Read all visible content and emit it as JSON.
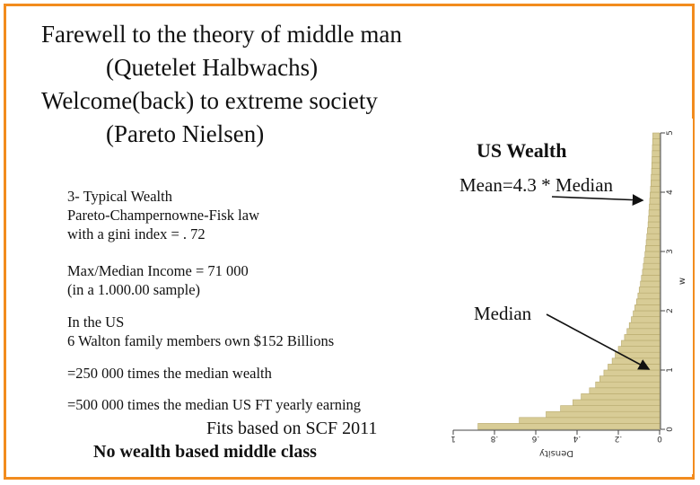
{
  "slide": {
    "title_lines": [
      "Farewell to the theory of middle man",
      "(Quetelet Halbwachs)",
      "Welcome(back) to extreme society",
      "(Pareto Nielsen)"
    ],
    "typical_wealth": [
      "3- Typical Wealth",
      "Pareto-Champernowne-Fisk law",
      "with a gini index = . 72"
    ],
    "max_median": [
      "Max/Median Income = 71 000",
      "(in a 1.000.00 sample)"
    ],
    "walton": [
      "In the US",
      "6 Walton family members own $152 Billions"
    ],
    "times_median_wealth": "=250 000 times the median wealth",
    "times_median_earning": "=500 000 times the median US FT yearly earning",
    "fits": "Fits based on SCF 2011",
    "no_middle_class": "No wealth based middle class",
    "chart_heading": "US Wealth",
    "mean_annotation": "Mean=4.3 * Median",
    "median_annotation": "Median"
  },
  "colors": {
    "frame": "#f28c1e",
    "bar_fill": "#d8cc96",
    "bar_stroke": "#b8aa6e"
  },
  "chart_data": {
    "type": "bar",
    "orientation": "horizontal",
    "title": "",
    "xlabel": "Density",
    "ylabel": "w",
    "x_ticks": [
      "1",
      ".8",
      ".6",
      ".4",
      ".2",
      "0"
    ],
    "y_ticks": [
      "0",
      "1",
      "2",
      "3",
      "4",
      "5"
    ],
    "xlim": [
      0,
      1
    ],
    "ylim": [
      0,
      5
    ],
    "grid": false,
    "bins": [
      {
        "w": 0.05,
        "density": 0.88
      },
      {
        "w": 0.15,
        "density": 0.68
      },
      {
        "w": 0.25,
        "density": 0.55
      },
      {
        "w": 0.35,
        "density": 0.48
      },
      {
        "w": 0.45,
        "density": 0.42
      },
      {
        "w": 0.55,
        "density": 0.38
      },
      {
        "w": 0.65,
        "density": 0.34
      },
      {
        "w": 0.75,
        "density": 0.31
      },
      {
        "w": 0.85,
        "density": 0.29
      },
      {
        "w": 0.95,
        "density": 0.27
      },
      {
        "w": 1.05,
        "density": 0.25
      },
      {
        "w": 1.15,
        "density": 0.23
      },
      {
        "w": 1.25,
        "density": 0.215
      },
      {
        "w": 1.35,
        "density": 0.2
      },
      {
        "w": 1.45,
        "density": 0.185
      },
      {
        "w": 1.55,
        "density": 0.17
      },
      {
        "w": 1.65,
        "density": 0.158
      },
      {
        "w": 1.75,
        "density": 0.147
      },
      {
        "w": 1.85,
        "density": 0.137
      },
      {
        "w": 1.95,
        "density": 0.128
      },
      {
        "w": 2.05,
        "density": 0.12
      },
      {
        "w": 2.15,
        "density": 0.112
      },
      {
        "w": 2.25,
        "density": 0.105
      },
      {
        "w": 2.35,
        "density": 0.099
      },
      {
        "w": 2.45,
        "density": 0.093
      },
      {
        "w": 2.55,
        "density": 0.088
      },
      {
        "w": 2.65,
        "density": 0.083
      },
      {
        "w": 2.75,
        "density": 0.079
      },
      {
        "w": 2.85,
        "density": 0.075
      },
      {
        "w": 2.95,
        "density": 0.071
      },
      {
        "w": 3.05,
        "density": 0.068
      },
      {
        "w": 3.15,
        "density": 0.065
      },
      {
        "w": 3.25,
        "density": 0.062
      },
      {
        "w": 3.35,
        "density": 0.059
      },
      {
        "w": 3.45,
        "density": 0.056
      },
      {
        "w": 3.55,
        "density": 0.054
      },
      {
        "w": 3.65,
        "density": 0.052
      },
      {
        "w": 3.75,
        "density": 0.05
      },
      {
        "w": 3.85,
        "density": 0.048
      },
      {
        "w": 3.95,
        "density": 0.046
      },
      {
        "w": 4.05,
        "density": 0.044
      },
      {
        "w": 4.15,
        "density": 0.042
      },
      {
        "w": 4.25,
        "density": 0.041
      },
      {
        "w": 4.35,
        "density": 0.039
      },
      {
        "w": 4.45,
        "density": 0.038
      },
      {
        "w": 4.55,
        "density": 0.037
      },
      {
        "w": 4.65,
        "density": 0.036
      },
      {
        "w": 4.75,
        "density": 0.035
      },
      {
        "w": 4.85,
        "density": 0.034
      },
      {
        "w": 4.95,
        "density": 0.033
      }
    ]
  }
}
